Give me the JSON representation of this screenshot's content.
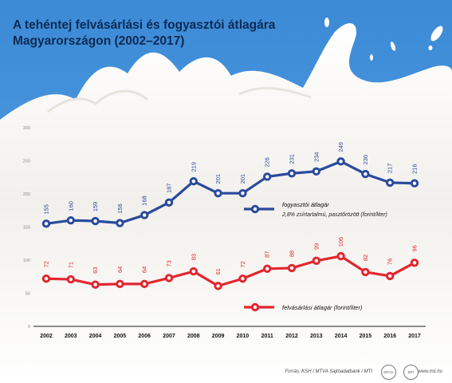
{
  "title_line1": "A tehéntej felvásárlási és fogyasztói átlagára",
  "title_line2": "Magyarországon (2002–2017)",
  "footer": {
    "source": "Forrás: KSH / MTVA Sajtóadatbank / MTI",
    "site": "www.mti.hu"
  },
  "colors": {
    "blue": "#2a4a9c",
    "red": "#e3262f",
    "sky": "#3f8fd8"
  },
  "chart_data": {
    "type": "line",
    "categories": [
      "2002",
      "2003",
      "2004",
      "2005",
      "2006",
      "2007",
      "2008",
      "2009",
      "2010",
      "2011",
      "2012",
      "2013",
      "2014",
      "2015",
      "2016",
      "2017"
    ],
    "ylim": [
      0,
      300
    ],
    "yticks": [
      0,
      50,
      100,
      150,
      200,
      250,
      300
    ],
    "series": [
      {
        "name": "fogyasztói átlagár",
        "subtitle": "2,8% zsírtartalmú, pasztőrözött (forint/liter)",
        "color": "#2a4a9c",
        "values": [
          155,
          160,
          159,
          156,
          168,
          187,
          219,
          201,
          201,
          226,
          231,
          234,
          249,
          230,
          217,
          216
        ]
      },
      {
        "name": "felvásárlási átlagár",
        "subtitle": "(forint/liter)",
        "color": "#e3262f",
        "values": [
          72,
          71,
          63,
          64,
          64,
          73,
          83,
          61,
          72,
          87,
          88,
          99,
          106,
          82,
          76,
          96
        ]
      }
    ]
  }
}
